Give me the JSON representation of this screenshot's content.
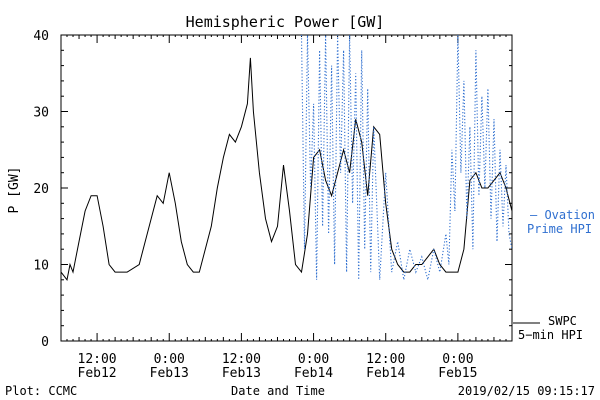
{
  "chart_data": {
    "type": "line",
    "title": "Hemispheric Power [GW]",
    "ylabel": "P [GW]",
    "xlabel": "Date and Time",
    "ylim": [
      0,
      40
    ],
    "xlim": [
      "2019-02-12T06:00",
      "2019-02-15T09:00"
    ],
    "yticks": [
      0,
      10,
      20,
      30,
      40
    ],
    "xticks": [
      {
        "t": "2019-02-12T12:00",
        "line1": "12:00",
        "line2": "Feb12"
      },
      {
        "t": "2019-02-13T00:00",
        "line1": "0:00",
        "line2": "Feb13"
      },
      {
        "t": "2019-02-13T12:00",
        "line1": "12:00",
        "line2": "Feb13"
      },
      {
        "t": "2019-02-14T00:00",
        "line1": "0:00",
        "line2": "Feb14"
      },
      {
        "t": "2019-02-14T12:00",
        "line1": "12:00",
        "line2": "Feb14"
      },
      {
        "t": "2019-02-15T00:00",
        "line1": "0:00",
        "line2": "Feb15"
      }
    ],
    "grid": false,
    "legend_placement": "right",
    "series": [
      {
        "name": "SWPC 5-min HPI",
        "style": "solid",
        "color": "#000000",
        "x": [
          "2019-02-12T06:00",
          "2019-02-12T07:00",
          "2019-02-12T07:30",
          "2019-02-12T08:00",
          "2019-02-12T09:00",
          "2019-02-12T10:00",
          "2019-02-12T11:00",
          "2019-02-12T12:00",
          "2019-02-12T13:00",
          "2019-02-12T14:00",
          "2019-02-12T15:00",
          "2019-02-12T16:00",
          "2019-02-12T17:00",
          "2019-02-12T19:00",
          "2019-02-12T21:00",
          "2019-02-12T22:00",
          "2019-02-12T23:00",
          "2019-02-13T00:00",
          "2019-02-13T01:00",
          "2019-02-13T02:00",
          "2019-02-13T03:00",
          "2019-02-13T04:00",
          "2019-02-13T05:00",
          "2019-02-13T07:00",
          "2019-02-13T08:00",
          "2019-02-13T09:00",
          "2019-02-13T10:00",
          "2019-02-13T11:00",
          "2019-02-13T12:00",
          "2019-02-13T13:00",
          "2019-02-13T13:30",
          "2019-02-13T14:00",
          "2019-02-13T15:00",
          "2019-02-13T16:00",
          "2019-02-13T17:00",
          "2019-02-13T18:00",
          "2019-02-13T19:00",
          "2019-02-13T20:00",
          "2019-02-13T21:00",
          "2019-02-13T22:00",
          "2019-02-13T23:00",
          "2019-02-14T00:00",
          "2019-02-14T01:00",
          "2019-02-14T02:00",
          "2019-02-14T03:00",
          "2019-02-14T04:00",
          "2019-02-14T05:00",
          "2019-02-14T06:00",
          "2019-02-14T07:00",
          "2019-02-14T08:00",
          "2019-02-14T09:00",
          "2019-02-14T10:00",
          "2019-02-14T11:00",
          "2019-02-14T12:00",
          "2019-02-14T13:00",
          "2019-02-14T14:00",
          "2019-02-14T15:00",
          "2019-02-14T16:00",
          "2019-02-14T17:00",
          "2019-02-14T18:00",
          "2019-02-14T19:00",
          "2019-02-14T20:00",
          "2019-02-14T21:00",
          "2019-02-14T22:00",
          "2019-02-14T23:00",
          "2019-02-15T00:00",
          "2019-02-15T01:00",
          "2019-02-15T02:00",
          "2019-02-15T03:00",
          "2019-02-15T04:00",
          "2019-02-15T05:00",
          "2019-02-15T06:00",
          "2019-02-15T07:00",
          "2019-02-15T08:00",
          "2019-02-15T09:00"
        ],
        "y": [
          9,
          8,
          10,
          9,
          13,
          17,
          19,
          19,
          15,
          10,
          9,
          9,
          9,
          10,
          16,
          19,
          18,
          22,
          18,
          13,
          10,
          9,
          9,
          15,
          20,
          24,
          27,
          26,
          28,
          31,
          37,
          30,
          22,
          16,
          13,
          15,
          23,
          17,
          10,
          9,
          14,
          24,
          25,
          21,
          19,
          22,
          25,
          22,
          29,
          26,
          19,
          28,
          27,
          18,
          12,
          10,
          9,
          9,
          10,
          10,
          11,
          12,
          10,
          9,
          9,
          9,
          12,
          21,
          22,
          20,
          20,
          21,
          22,
          20,
          17
        ]
      },
      {
        "name": "Ovation Prime HPI",
        "style": "dotted",
        "color": "#3070d0",
        "x": [
          "2019-02-13T22:00",
          "2019-02-13T22:30",
          "2019-02-13T23:00",
          "2019-02-13T23:30",
          "2019-02-14T00:00",
          "2019-02-14T00:30",
          "2019-02-14T01:00",
          "2019-02-14T01:30",
          "2019-02-14T02:00",
          "2019-02-14T02:30",
          "2019-02-14T03:00",
          "2019-02-14T03:30",
          "2019-02-14T04:00",
          "2019-02-14T04:30",
          "2019-02-14T05:00",
          "2019-02-14T05:30",
          "2019-02-14T06:00",
          "2019-02-14T06:30",
          "2019-02-14T07:00",
          "2019-02-14T07:30",
          "2019-02-14T08:00",
          "2019-02-14T08:30",
          "2019-02-14T09:00",
          "2019-02-14T09:30",
          "2019-02-14T10:00",
          "2019-02-14T11:00",
          "2019-02-14T12:00",
          "2019-02-14T13:00",
          "2019-02-14T14:00",
          "2019-02-14T15:00",
          "2019-02-14T16:00",
          "2019-02-14T17:00",
          "2019-02-14T18:00",
          "2019-02-14T19:00",
          "2019-02-14T20:00",
          "2019-02-14T21:00",
          "2019-02-14T22:00",
          "2019-02-14T22:30",
          "2019-02-14T23:00",
          "2019-02-14T23:30",
          "2019-02-15T00:00",
          "2019-02-15T00:30",
          "2019-02-15T01:00",
          "2019-02-15T01:30",
          "2019-02-15T02:00",
          "2019-02-15T02:30",
          "2019-02-15T03:00",
          "2019-02-15T03:30",
          "2019-02-15T04:00",
          "2019-02-15T04:30",
          "2019-02-15T05:00",
          "2019-02-15T05:30",
          "2019-02-15T06:00",
          "2019-02-15T06:30",
          "2019-02-15T07:00",
          "2019-02-15T07:30",
          "2019-02-15T08:00",
          "2019-02-15T08:30",
          "2019-02-15T09:00"
        ],
        "y": [
          40,
          12,
          40,
          20,
          31,
          8,
          38,
          15,
          40,
          14,
          36,
          10,
          40,
          22,
          38,
          9,
          40,
          18,
          35,
          8,
          38,
          12,
          33,
          9,
          28,
          8,
          22,
          9,
          13,
          8,
          12,
          9,
          11,
          8,
          12,
          9,
          14,
          10,
          25,
          17,
          40,
          22,
          34,
          16,
          28,
          12,
          38,
          19,
          32,
          20,
          33,
          16,
          29,
          13,
          25,
          15,
          23,
          14,
          12
        ]
      }
    ]
  },
  "legend": {
    "swpc_line1": "SWPC",
    "swpc_line2": "5−min HPI",
    "ovation_line1": "— Ovation",
    "ovation_line2": "Prime HPI"
  },
  "footer": {
    "left": "Plot: CCMC",
    "center": "Date and Time",
    "right": "2019/02/15 09:15:17"
  },
  "colors": {
    "swpc": "#000000",
    "ovation": "#3070d0",
    "axis": "#000000",
    "background": "#ffffff"
  }
}
